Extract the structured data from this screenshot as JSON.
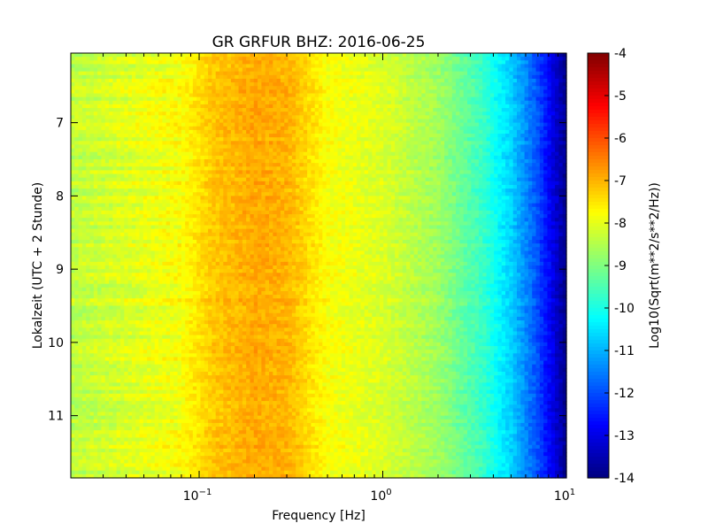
{
  "chart_data": {
    "type": "heatmap",
    "title": "GR GRFUR BHZ: 2016-06-25",
    "xlabel": "Frequency [Hz]",
    "ylabel": "Lokalzeit (UTC + 2 Stunde)",
    "x_scale": "log",
    "xlim": [
      0.02,
      10
    ],
    "x_ticks": [
      {
        "value": 0.1,
        "base": "10",
        "exp": "−1"
      },
      {
        "value": 1,
        "base": "10",
        "exp": "0"
      },
      {
        "value": 10,
        "base": "10",
        "exp": "1"
      }
    ],
    "ylim": [
      6.05,
      11.85
    ],
    "y_inverted": true,
    "y_ticks": [
      "7",
      "8",
      "9",
      "10",
      "11"
    ],
    "y_tick_values": [
      7,
      8,
      9,
      10,
      11
    ],
    "colorbar": {
      "label": "Log10(Sqrt(m**2/s**2/Hz))",
      "range": [
        -14,
        -4
      ],
      "ticks": [
        "-4",
        "-5",
        "-6",
        "-7",
        "-8",
        "-9",
        "-10",
        "-11",
        "-12",
        "-13",
        "-14"
      ],
      "tick_values": [
        -4,
        -5,
        -6,
        -7,
        -8,
        -9,
        -10,
        -11,
        -12,
        -13,
        -14
      ],
      "colormap": "jet"
    },
    "spectrum_profile": [
      {
        "freq": 0.02,
        "level": -8.4
      },
      {
        "freq": 0.04,
        "level": -8.1
      },
      {
        "freq": 0.08,
        "level": -7.8
      },
      {
        "freq": 0.12,
        "level": -7.2
      },
      {
        "freq": 0.2,
        "level": -6.9
      },
      {
        "freq": 0.3,
        "level": -7.0
      },
      {
        "freq": 0.5,
        "level": -7.8
      },
      {
        "freq": 1.0,
        "level": -8.1
      },
      {
        "freq": 2.0,
        "level": -8.7
      },
      {
        "freq": 3.5,
        "level": -9.7
      },
      {
        "freq": 5.0,
        "level": -10.7
      },
      {
        "freq": 7.0,
        "level": -12.0
      },
      {
        "freq": 10.0,
        "level": -13.9
      }
    ]
  }
}
